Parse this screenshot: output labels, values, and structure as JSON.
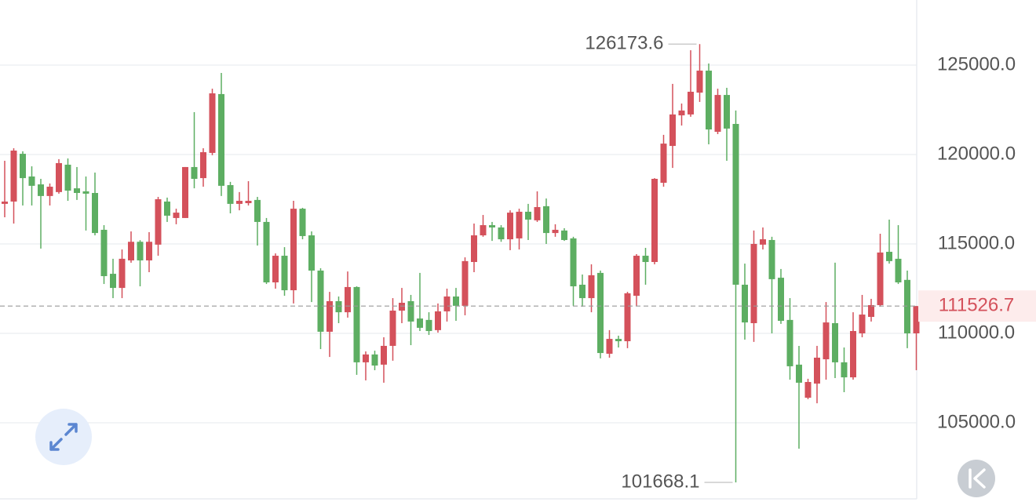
{
  "chart_data": {
    "type": "candlestick",
    "ylim": [
      100745,
      128640
    ],
    "yticks": [
      {
        "value": 105000,
        "label": "105000.0"
      },
      {
        "value": 110000,
        "label": "110000.0"
      },
      {
        "value": 115000,
        "label": "115000.0"
      },
      {
        "value": 120000,
        "label": "120000.0"
      },
      {
        "value": 125000,
        "label": "125000.0"
      }
    ],
    "grid": true,
    "up_color": "#d4515b",
    "down_color": "#5dae62",
    "open": [
      117240,
      117370,
      120040,
      118770,
      118330,
      117680,
      117900,
      119430,
      118110,
      117940,
      117850,
      115790,
      113330,
      112540,
      114080,
      115120,
      114080,
      114960,
      117370,
      116450,
      116450,
      119300,
      118680,
      120090,
      123380,
      118290,
      117240,
      117280,
      117460,
      116230,
      112850,
      114340,
      112410,
      116970,
      115480,
      113510,
      110090,
      111800,
      111180,
      112590,
      108380,
      108820,
      108250,
      109300,
      111270,
      111800,
      110830,
      110750,
      110180,
      111230,
      112060,
      111540,
      113990,
      115480,
      116050,
      115920,
      115260,
      115310,
      116800,
      116320,
      117110,
      115610,
      115750,
      115310,
      112720,
      111970,
      113380,
      108860,
      109690,
      109560,
      112100,
      114340,
      113990,
      118420,
      120480,
      122190,
      122240,
      123460,
      124690,
      121270,
      123330,
      121710,
      112720,
      110570,
      114960,
      115220,
      113110,
      110750,
      108250,
      106400,
      107190,
      108550,
      110570,
      108380,
      107540,
      110000,
      110920,
      111580,
      114560,
      114170,
      112990,
      110000
    ],
    "high": [
      119650,
      120350,
      120180,
      119340,
      118640,
      118380,
      119740,
      119780,
      119300,
      118770,
      118990,
      116050,
      114170,
      114690,
      115700,
      115210,
      115660,
      117630,
      117590,
      116970,
      119300,
      122370,
      120350,
      123680,
      124560,
      118470,
      117900,
      118510,
      117630,
      116450,
      114470,
      114820,
      117410,
      117020,
      115700,
      113640,
      112320,
      112060,
      113460,
      112630,
      108990,
      109030,
      109780,
      111970,
      112540,
      112150,
      113380,
      111180,
      111670,
      112500,
      112540,
      114250,
      116140,
      116620,
      116230,
      116050,
      116880,
      116970,
      117240,
      117940,
      117540,
      116100,
      115880,
      115400,
      113290,
      113860,
      113510,
      110180,
      109870,
      112320,
      114430,
      114780,
      118680,
      121100,
      123950,
      122850,
      125830,
      126173.6,
      125090,
      123680,
      123730,
      122460,
      113900,
      115750,
      115920,
      115400,
      113600,
      111970,
      109300,
      107460,
      109300,
      111750,
      113950,
      109210,
      111180,
      112150,
      111930,
      115570,
      116360,
      116050,
      113510,
      111526.7
    ],
    "low": [
      116490,
      116140,
      117150,
      117150,
      114740,
      117150,
      117810,
      117410,
      117460,
      115750,
      115480,
      112760,
      111970,
      111970,
      113950,
      112630,
      113420,
      114340,
      116230,
      116100,
      116450,
      118110,
      118200,
      119960,
      117680,
      116710,
      116880,
      117150,
      114910,
      112760,
      112500,
      112100,
      111670,
      115260,
      111750,
      109120,
      108680,
      110570,
      110880,
      107680,
      107370,
      107940,
      107240,
      108470,
      110570,
      109340,
      110130,
      109910,
      110040,
      110660,
      110700,
      111010,
      113420,
      115400,
      115170,
      115120,
      114650,
      114690,
      115220,
      116230,
      115000,
      115400,
      115170,
      111540,
      111490,
      111180,
      108600,
      108640,
      109210,
      109170,
      111540,
      112720,
      113860,
      118200,
      119250,
      121620,
      122110,
      122940,
      120570,
      121140,
      119650,
      101668.1,
      109650,
      109520,
      114690,
      110000,
      110530,
      107410,
      103550,
      106320,
      106090,
      107410,
      107500,
      106710,
      107410,
      109780,
      110660,
      111490,
      113900,
      112760,
      109170,
      107940
    ],
    "close": [
      117370,
      120220,
      118680,
      118250,
      117680,
      118200,
      119520,
      117980,
      117850,
      117810,
      115610,
      113200,
      112540,
      114170,
      115120,
      114080,
      115120,
      117500,
      116580,
      116750,
      119300,
      118640,
      120130,
      123420,
      118250,
      117240,
      117410,
      117410,
      116230,
      112850,
      114340,
      112410,
      116970,
      115440,
      113510,
      110090,
      111800,
      111180,
      112590,
      108380,
      108820,
      108200,
      109300,
      111270,
      111710,
      110660,
      110310,
      110130,
      111230,
      112060,
      111540,
      114040,
      115480,
      116050,
      115920,
      115260,
      116750,
      116800,
      116360,
      117060,
      115610,
      115790,
      115220,
      112630,
      111970,
      113250,
      108900,
      109690,
      109560,
      112240,
      114340,
      113990,
      118640,
      120610,
      122240,
      122460,
      123510,
      124690,
      121400,
      123330,
      121450,
      112720,
      110610,
      115000,
      115260,
      113030,
      110700,
      108160,
      107240,
      107280,
      108640,
      110610,
      108380,
      107540,
      110130,
      111050,
      111580,
      114520,
      114040,
      112850,
      110000,
      111526.7
    ]
  }
}
